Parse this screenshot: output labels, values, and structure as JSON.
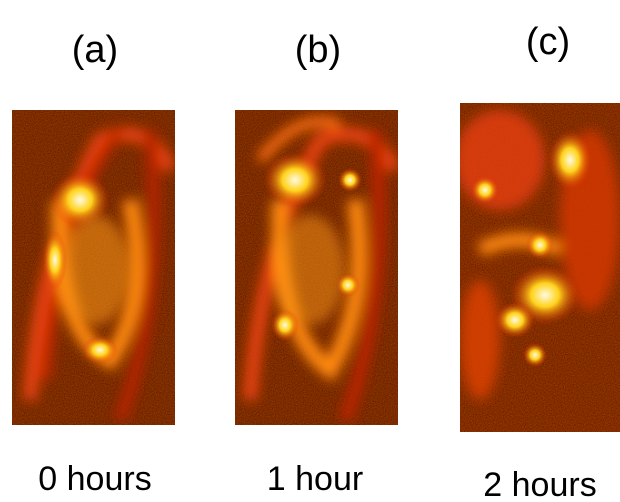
{
  "panels": [
    {
      "label": "(a)",
      "caption": "0 hours"
    },
    {
      "label": "(b)",
      "caption": "1 hour"
    },
    {
      "label": "(c)",
      "caption": "2 hours"
    }
  ]
}
